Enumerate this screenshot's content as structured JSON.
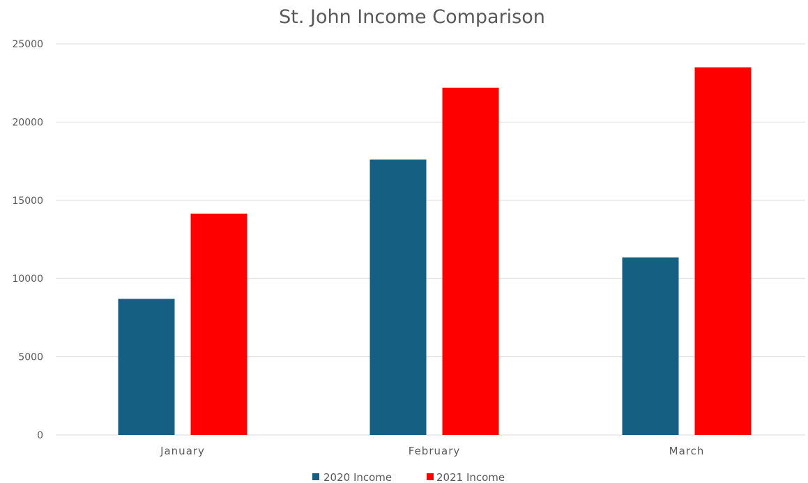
{
  "chart_data": {
    "type": "bar",
    "title": "St. John Income Comparison",
    "xlabel": "",
    "ylabel": "",
    "categories": [
      "January",
      "February",
      "March"
    ],
    "series": [
      {
        "name": "2020 Income",
        "color": "#156082",
        "values": [
          8700,
          17600,
          11350
        ]
      },
      {
        "name": "2021 Income",
        "color": "#ff0000",
        "values": [
          14150,
          22200,
          23500
        ]
      }
    ],
    "ylim": [
      0,
      25000
    ],
    "yticks": [
      "0",
      "5000",
      "10000",
      "15000",
      "20000",
      "25000"
    ],
    "grid": true,
    "legend": "bottom"
  }
}
